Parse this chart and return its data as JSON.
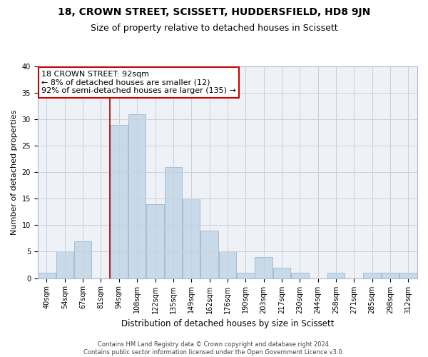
{
  "title": "18, CROWN STREET, SCISSETT, HUDDERSFIELD, HD8 9JN",
  "subtitle": "Size of property relative to detached houses in Scissett",
  "xlabel": "Distribution of detached houses by size in Scissett",
  "ylabel": "Number of detached properties",
  "bar_labels": [
    "40sqm",
    "54sqm",
    "67sqm",
    "81sqm",
    "94sqm",
    "108sqm",
    "122sqm",
    "135sqm",
    "149sqm",
    "162sqm",
    "176sqm",
    "190sqm",
    "203sqm",
    "217sqm",
    "230sqm",
    "244sqm",
    "258sqm",
    "271sqm",
    "285sqm",
    "298sqm",
    "312sqm"
  ],
  "bar_values": [
    1,
    5,
    7,
    0,
    29,
    31,
    14,
    21,
    15,
    9,
    5,
    1,
    4,
    2,
    1,
    0,
    1,
    0,
    1,
    1,
    1
  ],
  "bar_color": "#c8daea",
  "bar_edge_color": "#9ab8cc",
  "marker_line_color": "#aa0000",
  "annotation_line1": "18 CROWN STREET: 92sqm",
  "annotation_line2": "← 8% of detached houses are smaller (12)",
  "annotation_line3": "92% of semi-detached houses are larger (135) →",
  "annotation_box_color": "#ffffff",
  "annotation_box_edge_color": "#cc0000",
  "ylim": [
    0,
    40
  ],
  "yticks": [
    0,
    5,
    10,
    15,
    20,
    25,
    30,
    35,
    40
  ],
  "grid_color": "#c8d0d8",
  "bg_color": "#eef2f7",
  "footer_text": "Contains HM Land Registry data © Crown copyright and database right 2024.\nContains public sector information licensed under the Open Government Licence v3.0.",
  "title_fontsize": 10,
  "subtitle_fontsize": 9,
  "tick_fontsize": 7,
  "ylabel_fontsize": 8,
  "xlabel_fontsize": 8.5,
  "footer_fontsize": 6,
  "annot_fontsize": 8
}
